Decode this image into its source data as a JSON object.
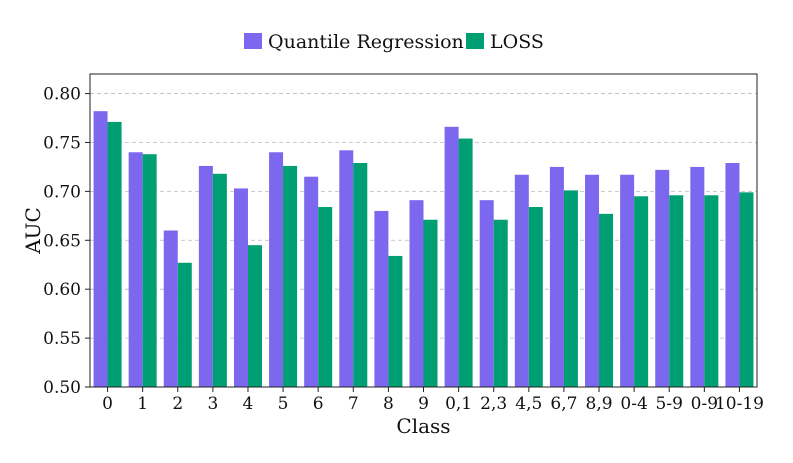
{
  "chart_data": {
    "type": "bar",
    "title": "",
    "xlabel": "Class",
    "ylabel": "AUC",
    "ylim": [
      0.5,
      0.82
    ],
    "yticks": [
      "0.50",
      "0.55",
      "0.60",
      "0.65",
      "0.70",
      "0.75",
      "0.80"
    ],
    "grid": "horizontal-dashed",
    "legend_position": "top-center",
    "categories": [
      "0",
      "1",
      "2",
      "3",
      "4",
      "5",
      "6",
      "7",
      "8",
      "9",
      "0,1",
      "2,3",
      "4,5",
      "6,7",
      "8,9",
      "0-4",
      "5-9",
      "0-9",
      "10-19"
    ],
    "series": [
      {
        "name": "Quantile Regression",
        "color": "#7b68ee",
        "values": [
          0.782,
          0.74,
          0.66,
          0.726,
          0.703,
          0.74,
          0.715,
          0.742,
          0.68,
          0.691,
          0.766,
          0.691,
          0.717,
          0.725,
          0.717,
          0.717,
          0.722,
          0.725,
          0.729
        ]
      },
      {
        "name": "LOSS",
        "color": "#009e73",
        "values": [
          0.771,
          0.738,
          0.627,
          0.718,
          0.645,
          0.726,
          0.684,
          0.729,
          0.634,
          0.671,
          0.754,
          0.671,
          0.684,
          0.701,
          0.677,
          0.695,
          0.696,
          0.696,
          0.699
        ]
      }
    ]
  }
}
